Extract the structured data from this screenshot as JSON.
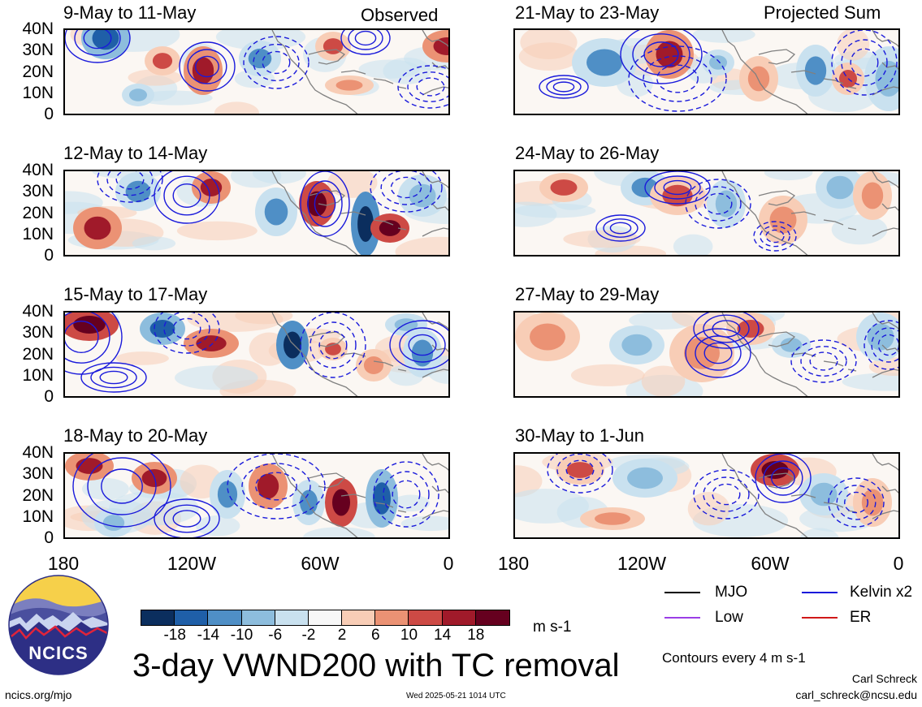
{
  "panels_left": [
    {
      "title": "9-May to 11-May",
      "label": "Observed"
    },
    {
      "title": "12-May to 14-May",
      "label": ""
    },
    {
      "title": "15-May to 17-May",
      "label": ""
    },
    {
      "title": "18-May to 20-May",
      "label": ""
    }
  ],
  "panels_right": [
    {
      "title": "21-May to 23-May",
      "label": "Projected Sum"
    },
    {
      "title": "24-May to 26-May",
      "label": ""
    },
    {
      "title": "27-May to 29-May",
      "label": ""
    },
    {
      "title": "30-May to 1-Jun",
      "label": ""
    }
  ],
  "lat_labels": [
    "40N",
    "30N",
    "20N",
    "10N",
    "0"
  ],
  "lon_labels": [
    "180",
    "120W",
    "60W",
    "0"
  ],
  "colorbar": {
    "labels": [
      "-18",
      "-14",
      "-10",
      "-6",
      "-2",
      "2",
      "6",
      "10",
      "14",
      "18"
    ],
    "colors": [
      "#0b2e5e",
      "#1f5fa8",
      "#4f8fc6",
      "#8dbddd",
      "#c9e1ef",
      "#f7f7f7",
      "#f8cdb6",
      "#eb9274",
      "#cd4a45",
      "#a01a2a",
      "#66001f"
    ],
    "units": "m s-1"
  },
  "title": "3-day VWND200 with TC removal",
  "legend": {
    "items": [
      {
        "label": "MJO",
        "color": "#000000"
      },
      {
        "label": "Kelvin x2",
        "color": "#1a1adb"
      },
      {
        "label": "Low",
        "color": "#9b3ee6"
      },
      {
        "label": "ER",
        "color": "#d01818"
      }
    ],
    "contour_note": "Contours every 4 m s-1"
  },
  "logo": {
    "text": "NCICS"
  },
  "footer": {
    "left": "ncics.org/mjo",
    "center": "Wed 2025-05-21 1014 UTC",
    "author": "Carl Schreck",
    "email": "carl_schreck@ncsu.edu"
  },
  "colors": {
    "contour": "#1a1adb",
    "coast": "#808080"
  }
}
